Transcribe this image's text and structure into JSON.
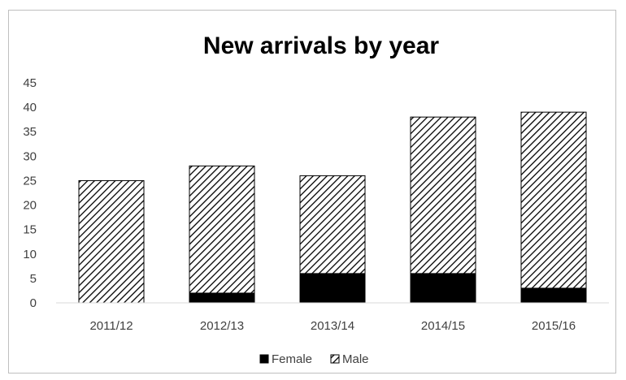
{
  "chart_data": {
    "type": "bar",
    "stacked": true,
    "title": "New arrivals by year",
    "categories": [
      "2011/12",
      "2012/13",
      "2013/14",
      "2014/15",
      "2015/16"
    ],
    "series": [
      {
        "name": "Female",
        "values": [
          0,
          2,
          6,
          6,
          3
        ],
        "color": "#000000",
        "pattern": "solid"
      },
      {
        "name": "Male",
        "values": [
          25,
          26,
          20,
          32,
          36
        ],
        "color": "#000000",
        "pattern": "diagonal-hatch"
      }
    ],
    "ylim": [
      0,
      45
    ],
    "yticks": [
      0,
      5,
      10,
      15,
      20,
      25,
      30,
      35,
      40,
      45
    ],
    "grid": false,
    "legend": "bottom"
  }
}
